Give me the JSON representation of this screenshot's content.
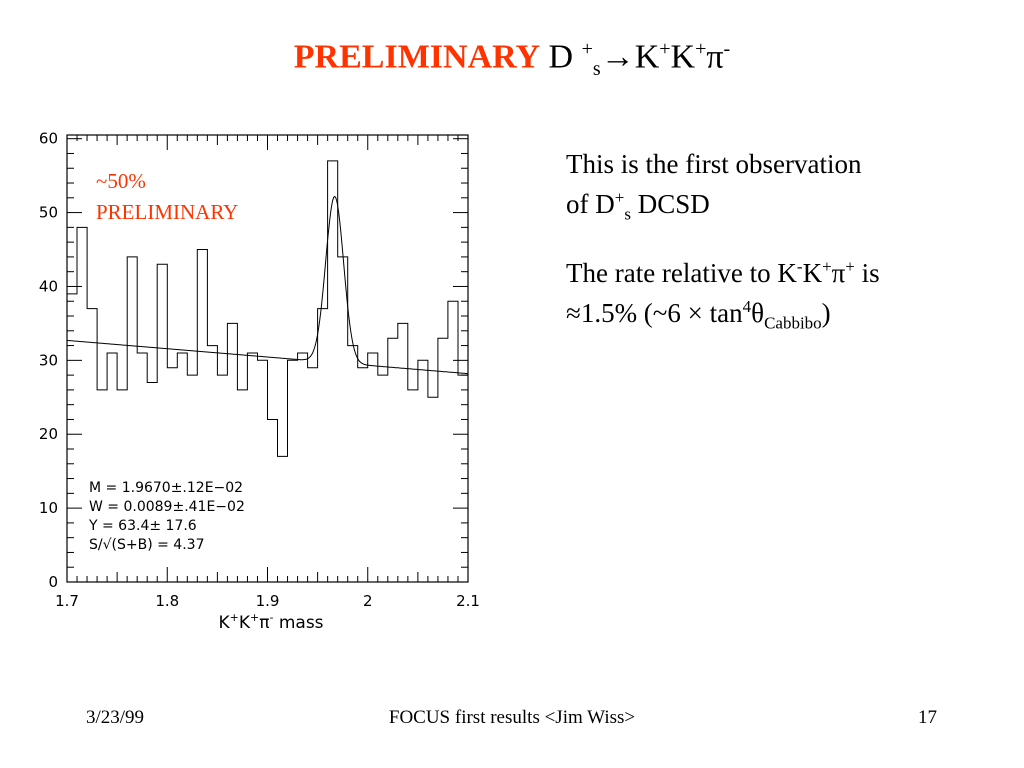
{
  "slide": {
    "title_highlight": "PRELIMINARY",
    "title_D": "D",
    "title_plus": "+",
    "title_s": "s",
    "title_arrow": "→",
    "title_K1": "K",
    "title_K2": "K",
    "title_pi": "π",
    "title_minus": "-",
    "note1_line1": "This is the  first observation",
    "note1_line2_a": "of D",
    "note1_line2_sup": "+",
    "note1_line2_sub": "s",
    "note1_line2_b": "  DCSD",
    "note2_line1_a": "The rate relative to K",
    "note2_line1_sup1": "-",
    "note2_line1_b": "K",
    "note2_line1_sup2": "+",
    "note2_line1_c": "π",
    "note2_line1_sup3": "+",
    "note2_line1_d": " is",
    "note2_line2_a": "≈1.5%  (~6 × tan",
    "note2_line2_sup": "4",
    "note2_line2_b": "θ",
    "note2_line2_sub": "Cabbibo",
    "note2_line2_c": ")",
    "footer_date": "3/23/99",
    "footer_center": "FOCUS first results <Jim Wiss>",
    "footer_page": "17"
  },
  "chart_data": {
    "type": "histogram",
    "xlabel_K1": "K",
    "xlabel_sup1": "+",
    "xlabel_K2": "K",
    "xlabel_sup2": "+",
    "xlabel_pi": "π",
    "xlabel_sup3": "-",
    "xlabel_rest": " mass",
    "xlim": [
      1.7,
      2.1
    ],
    "ylim": [
      0,
      60.5
    ],
    "x_ticks": [
      "1.7",
      "1.8",
      "1.9",
      "2",
      "2.1"
    ],
    "y_ticks": [
      "0",
      "10",
      "20",
      "30",
      "40",
      "50",
      "60"
    ],
    "bin_edges": [
      1.7,
      1.71,
      1.72,
      1.73,
      1.74,
      1.75,
      1.76,
      1.77,
      1.78,
      1.79,
      1.8,
      1.81,
      1.82,
      1.83,
      1.84,
      1.85,
      1.86,
      1.87,
      1.88,
      1.89,
      1.9,
      1.91,
      1.92,
      1.93,
      1.94,
      1.95,
      1.96,
      1.97,
      1.98,
      1.99,
      2.0,
      2.01,
      2.02,
      2.03,
      2.04,
      2.05,
      2.06,
      2.07,
      2.08,
      2.09,
      2.1
    ],
    "counts": [
      39,
      48,
      37,
      26,
      31,
      26,
      44,
      31,
      27,
      43,
      29,
      31,
      28,
      45,
      32,
      28,
      35,
      26,
      31,
      30,
      22,
      17,
      30,
      31,
      29,
      37,
      57,
      44,
      32,
      29,
      31,
      28,
      33,
      35,
      26,
      30,
      25,
      33,
      38,
      28
    ],
    "fit": {
      "label": "background plus Gaussian fit",
      "mean": 1.967,
      "sigma": 0.0089,
      "peak_height": 22.5,
      "background_start": 32.7,
      "background_end": 28.2
    },
    "annotation_line1": "~50%",
    "annotation_line2": "PRELIMINARY",
    "annotation_color": "#ff3300",
    "fit_results": [
      "M = 1.9670±.12E−02",
      "W = 0.0089±.41E−02",
      "Y =   63.4±   17.6",
      "S/√(S+B) =  4.37"
    ]
  }
}
